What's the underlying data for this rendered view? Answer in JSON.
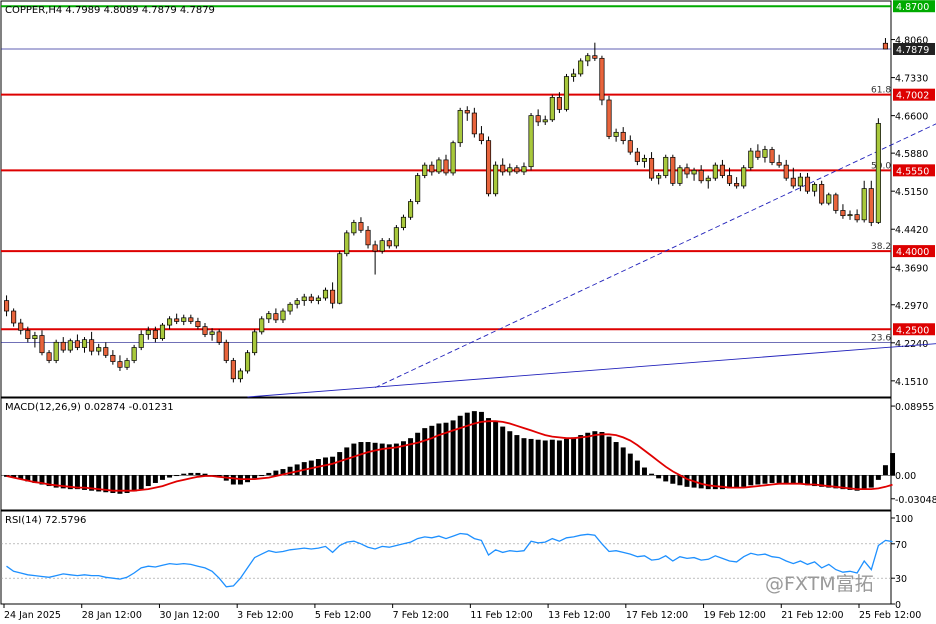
{
  "header": {
    "price_title": "COPPER,H4  4.7989 4.8089 4.7879 4.7879",
    "macd_title": "MACD(12,26,9) 0.02874 -0.01231",
    "rsi_title": "RSI(14) 72.5796"
  },
  "watermark": {
    "text": "@FXTM富拓"
  },
  "colors": {
    "bull": "#a8c83c",
    "bear": "#e8643c",
    "hline": "#dd0000",
    "trend": "#2222bb",
    "signal": "#e00000",
    "rsi": "#1e90ff",
    "grid_box": "#000000",
    "last_price": "#222222"
  },
  "chart_data": [
    {
      "type": "candlestick",
      "title": "COPPER,H4",
      "ylim": [
        4.12,
        4.88
      ],
      "y_ticks": [
        "4.8060",
        "4.7330",
        "4.6600",
        "4.5880",
        "4.5150",
        "4.4420",
        "4.3690",
        "4.2970",
        "4.2240",
        "4.1510"
      ],
      "x_ticks": [
        "24 Jan 2025",
        "28 Jan 12:00",
        "30 Jan 12:00",
        "3 Feb 12:00",
        "5 Feb 12:00",
        "7 Feb 12:00",
        "11 Feb 12:00",
        "13 Feb 12:00",
        "17 Feb 12:00",
        "19 Feb 12:00",
        "21 Feb 12:00",
        "25 Feb 12:00"
      ],
      "price_labels": [
        {
          "value": 4.87,
          "text": "4.8700",
          "kind": "level",
          "color": "#00aa00"
        },
        {
          "value": 4.7879,
          "text": "4.7879",
          "kind": "last",
          "color": "#222222"
        },
        {
          "value": 4.7002,
          "text": "4.7002",
          "kind": "level",
          "color": "#dd0000"
        },
        {
          "value": 4.555,
          "text": "4.5550",
          "kind": "level",
          "color": "#dd0000"
        },
        {
          "value": 4.4,
          "text": "4.4000",
          "kind": "level",
          "color": "#dd0000"
        },
        {
          "value": 4.25,
          "text": "4.2500",
          "kind": "level",
          "color": "#dd0000"
        }
      ],
      "fib_levels": [
        {
          "value": 4.7002,
          "label": "61.8"
        },
        {
          "value": 4.555,
          "label": "50.0"
        },
        {
          "value": 4.4,
          "label": "38.2"
        },
        {
          "value": 4.2245,
          "label": "23.6"
        }
      ],
      "trendlines": [
        {
          "style": "dashed",
          "from": [
            52,
            4.138
          ],
          "to": [
            168,
            4.88
          ]
        },
        {
          "style": "solid",
          "from": [
            34,
            4.12
          ],
          "to": [
            219,
            4.315
          ]
        }
      ],
      "candles_ohlc": [
        [
          4.305,
          4.315,
          4.275,
          4.285
        ],
        [
          4.285,
          4.29,
          4.255,
          4.262
        ],
        [
          4.262,
          4.27,
          4.24,
          4.248
        ],
        [
          4.248,
          4.255,
          4.225,
          4.232
        ],
        [
          4.232,
          4.245,
          4.215,
          4.238
        ],
        [
          4.238,
          4.248,
          4.2,
          4.205
        ],
        [
          4.205,
          4.21,
          4.185,
          4.19
        ],
        [
          4.19,
          4.23,
          4.185,
          4.225
        ],
        [
          4.225,
          4.235,
          4.205,
          4.21
        ],
        [
          4.21,
          4.232,
          4.205,
          4.228
        ],
        [
          4.228,
          4.24,
          4.21,
          4.215
        ],
        [
          4.215,
          4.235,
          4.205,
          4.23
        ],
        [
          4.23,
          4.245,
          4.2,
          4.208
        ],
        [
          4.208,
          4.222,
          4.2,
          4.215
        ],
        [
          4.215,
          4.225,
          4.195,
          4.2
        ],
        [
          4.2,
          4.21,
          4.182,
          4.188
        ],
        [
          4.188,
          4.2,
          4.17,
          4.177
        ],
        [
          4.177,
          4.195,
          4.172,
          4.19
        ],
        [
          4.19,
          4.22,
          4.185,
          4.215
        ],
        [
          4.215,
          4.248,
          4.21,
          4.24
        ],
        [
          4.24,
          4.255,
          4.23,
          4.248
        ],
        [
          4.248,
          4.255,
          4.225,
          4.232
        ],
        [
          4.232,
          4.262,
          4.228,
          4.258
        ],
        [
          4.258,
          4.275,
          4.25,
          4.27
        ],
        [
          4.27,
          4.28,
          4.26,
          4.265
        ],
        [
          4.265,
          4.278,
          4.258,
          4.272
        ],
        [
          4.272,
          4.278,
          4.26,
          4.265
        ],
        [
          4.265,
          4.272,
          4.25,
          4.255
        ],
        [
          4.255,
          4.262,
          4.235,
          4.24
        ],
        [
          4.24,
          4.252,
          4.228,
          4.245
        ],
        [
          4.245,
          4.25,
          4.22,
          4.225
        ],
        [
          4.225,
          4.23,
          4.185,
          4.19
        ],
        [
          4.19,
          4.195,
          4.148,
          4.155
        ],
        [
          4.155,
          4.175,
          4.148,
          4.17
        ],
        [
          4.17,
          4.21,
          4.165,
          4.205
        ],
        [
          4.205,
          4.25,
          4.2,
          4.245
        ],
        [
          4.245,
          4.275,
          4.24,
          4.27
        ],
        [
          4.27,
          4.285,
          4.262,
          4.28
        ],
        [
          4.28,
          4.29,
          4.262,
          4.268
        ],
        [
          4.268,
          4.29,
          4.262,
          4.285
        ],
        [
          4.285,
          4.302,
          4.278,
          4.298
        ],
        [
          4.298,
          4.31,
          4.29,
          4.305
        ],
        [
          4.305,
          4.318,
          4.295,
          4.312
        ],
        [
          4.312,
          4.318,
          4.3,
          4.305
        ],
        [
          4.305,
          4.315,
          4.298,
          4.31
        ],
        [
          4.31,
          4.33,
          4.305,
          4.325
        ],
        [
          4.325,
          4.34,
          4.29,
          4.3
        ],
        [
          4.3,
          4.4,
          4.298,
          4.395
        ],
        [
          4.395,
          4.44,
          4.39,
          4.435
        ],
        [
          4.435,
          4.46,
          4.43,
          4.455
        ],
        [
          4.455,
          4.465,
          4.435,
          4.44
        ],
        [
          4.44,
          4.448,
          4.405,
          4.412
        ],
        [
          4.412,
          4.42,
          4.355,
          4.4
        ],
        [
          4.4,
          4.425,
          4.395,
          4.42
        ],
        [
          4.42,
          4.425,
          4.405,
          4.41
        ],
        [
          4.41,
          4.45,
          4.405,
          4.445
        ],
        [
          4.445,
          4.47,
          4.44,
          4.465
        ],
        [
          4.465,
          4.5,
          4.46,
          4.495
        ],
        [
          4.495,
          4.55,
          4.49,
          4.545
        ],
        [
          4.545,
          4.57,
          4.54,
          4.565
        ],
        [
          4.565,
          4.572,
          4.545,
          4.552
        ],
        [
          4.552,
          4.58,
          4.548,
          4.575
        ],
        [
          4.575,
          4.585,
          4.545,
          4.55
        ],
        [
          4.55,
          4.612,
          4.545,
          4.608
        ],
        [
          4.608,
          4.675,
          4.6,
          4.67
        ],
        [
          4.67,
          4.678,
          4.65,
          4.665
        ],
        [
          4.665,
          4.675,
          4.618,
          4.625
        ],
        [
          4.625,
          4.64,
          4.605,
          4.612
        ],
        [
          4.612,
          4.62,
          4.505,
          4.51
        ],
        [
          4.51,
          4.572,
          4.505,
          4.565
        ],
        [
          4.565,
          4.578,
          4.545,
          4.552
        ],
        [
          4.552,
          4.568,
          4.545,
          4.56
        ],
        [
          4.56,
          4.565,
          4.548,
          4.552
        ],
        [
          4.552,
          4.57,
          4.546,
          4.562
        ],
        [
          4.562,
          4.665,
          4.555,
          4.66
        ],
        [
          4.66,
          4.672,
          4.64,
          4.648
        ],
        [
          4.648,
          4.66,
          4.642,
          4.652
        ],
        [
          4.652,
          4.7,
          4.648,
          4.695
        ],
        [
          4.695,
          4.705,
          4.665,
          4.672
        ],
        [
          4.672,
          4.74,
          4.668,
          4.735
        ],
        [
          4.735,
          4.75,
          4.725,
          4.74
        ],
        [
          4.74,
          4.77,
          4.735,
          4.765
        ],
        [
          4.765,
          4.78,
          4.755,
          4.775
        ],
        [
          4.775,
          4.8,
          4.765,
          4.77
        ],
        [
          4.77,
          4.775,
          4.68,
          4.69
        ],
        [
          4.69,
          4.698,
          4.615,
          4.62
        ],
        [
          4.62,
          4.635,
          4.61,
          4.628
        ],
        [
          4.628,
          4.638,
          4.605,
          4.612
        ],
        [
          4.612,
          4.622,
          4.585,
          4.59
        ],
        [
          4.59,
          4.598,
          4.565,
          4.572
        ],
        [
          4.572,
          4.585,
          4.56,
          4.578
        ],
        [
          4.578,
          4.59,
          4.535,
          4.54
        ],
        [
          4.54,
          4.55,
          4.528,
          4.545
        ],
        [
          4.545,
          4.585,
          4.54,
          4.58
        ],
        [
          4.58,
          4.585,
          4.525,
          4.53
        ],
        [
          4.53,
          4.565,
          4.525,
          4.56
        ],
        [
          4.56,
          4.568,
          4.54,
          4.548
        ],
        [
          4.548,
          4.56,
          4.535,
          4.555
        ],
        [
          4.555,
          4.565,
          4.53,
          4.535
        ],
        [
          4.535,
          4.545,
          4.52,
          4.54
        ],
        [
          4.54,
          4.57,
          4.535,
          4.565
        ],
        [
          4.565,
          4.575,
          4.54,
          4.545
        ],
        [
          4.545,
          4.56,
          4.525,
          4.53
        ],
        [
          4.53,
          4.542,
          4.52,
          4.525
        ],
        [
          4.525,
          4.565,
          4.52,
          4.56
        ],
        [
          4.56,
          4.598,
          4.555,
          4.592
        ],
        [
          4.592,
          4.605,
          4.575,
          4.58
        ],
        [
          4.58,
          4.602,
          4.57,
          4.595
        ],
        [
          4.595,
          4.6,
          4.565,
          4.57
        ],
        [
          4.57,
          4.585,
          4.56,
          4.565
        ],
        [
          4.565,
          4.575,
          4.535,
          4.54
        ],
        [
          4.54,
          4.56,
          4.52,
          4.525
        ],
        [
          4.525,
          4.55,
          4.515,
          4.542
        ],
        [
          4.542,
          4.55,
          4.51,
          4.515
        ],
        [
          4.515,
          4.532,
          4.505,
          4.528
        ],
        [
          4.528,
          4.535,
          4.488,
          4.492
        ],
        [
          4.492,
          4.512,
          4.488,
          4.508
        ],
        [
          4.508,
          4.512,
          4.472,
          4.478
        ],
        [
          4.478,
          4.49,
          4.462,
          4.468
        ],
        [
          4.468,
          4.478,
          4.46,
          4.47
        ],
        [
          4.47,
          4.48,
          4.455,
          4.46
        ],
        [
          4.46,
          4.535,
          4.455,
          4.52
        ],
        [
          4.52,
          4.535,
          4.448,
          4.455
        ],
        [
          4.455,
          4.655,
          4.452,
          4.645
        ],
        [
          4.7989,
          4.8089,
          4.7879,
          4.7879
        ]
      ]
    },
    {
      "type": "bar",
      "title": "MACD(12,26,9)",
      "ylim": [
        -0.045,
        0.1
      ],
      "y_ticks": [
        "0.08955",
        "0.00",
        "-0.03048"
      ],
      "y_tick_values": [
        0.08955,
        0,
        -0.03048
      ],
      "histogram": [
        -0.002,
        -0.003,
        -0.005,
        -0.008,
        -0.01,
        -0.012,
        -0.014,
        -0.016,
        -0.017,
        -0.018,
        -0.018,
        -0.019,
        -0.02,
        -0.021,
        -0.022,
        -0.023,
        -0.024,
        -0.023,
        -0.021,
        -0.018,
        -0.014,
        -0.01,
        -0.006,
        -0.003,
        0.0,
        0.002,
        0.003,
        0.003,
        0.002,
        0.0,
        -0.003,
        -0.007,
        -0.012,
        -0.012,
        -0.009,
        -0.004,
        0.0,
        0.003,
        0.006,
        0.008,
        0.011,
        0.014,
        0.017,
        0.019,
        0.021,
        0.023,
        0.024,
        0.03,
        0.036,
        0.041,
        0.043,
        0.043,
        0.042,
        0.041,
        0.04,
        0.041,
        0.044,
        0.048,
        0.055,
        0.061,
        0.064,
        0.067,
        0.068,
        0.071,
        0.077,
        0.081,
        0.083,
        0.082,
        0.074,
        0.069,
        0.063,
        0.057,
        0.052,
        0.048,
        0.047,
        0.046,
        0.045,
        0.046,
        0.045,
        0.047,
        0.049,
        0.052,
        0.055,
        0.057,
        0.056,
        0.05,
        0.043,
        0.036,
        0.028,
        0.019,
        0.01,
        0.002,
        -0.004,
        -0.008,
        -0.011,
        -0.013,
        -0.015,
        -0.016,
        -0.017,
        -0.018,
        -0.018,
        -0.018,
        -0.017,
        -0.016,
        -0.015,
        -0.013,
        -0.012,
        -0.011,
        -0.01,
        -0.01,
        -0.011,
        -0.011,
        -0.012,
        -0.013,
        -0.014,
        -0.015,
        -0.016,
        -0.017,
        -0.018,
        -0.019,
        -0.02,
        -0.019,
        -0.016,
        -0.006,
        0.013,
        0.02874
      ],
      "signal": [
        -0.001,
        -0.003,
        -0.005,
        -0.007,
        -0.009,
        -0.01,
        -0.012,
        -0.013,
        -0.014,
        -0.015,
        -0.016,
        -0.016,
        -0.017,
        -0.018,
        -0.019,
        -0.02,
        -0.02,
        -0.02,
        -0.02,
        -0.019,
        -0.018,
        -0.016,
        -0.014,
        -0.011,
        -0.008,
        -0.006,
        -0.004,
        -0.002,
        -0.001,
        -0.001,
        -0.002,
        -0.003,
        -0.004,
        -0.005,
        -0.005,
        -0.005,
        -0.004,
        -0.003,
        -0.001,
        0.001,
        0.003,
        0.005,
        0.007,
        0.009,
        0.011,
        0.013,
        0.015,
        0.018,
        0.021,
        0.024,
        0.027,
        0.03,
        0.032,
        0.034,
        0.035,
        0.036,
        0.038,
        0.04,
        0.042,
        0.045,
        0.048,
        0.052,
        0.055,
        0.058,
        0.061,
        0.064,
        0.067,
        0.069,
        0.07,
        0.07,
        0.069,
        0.067,
        0.064,
        0.061,
        0.058,
        0.055,
        0.052,
        0.05,
        0.049,
        0.048,
        0.048,
        0.049,
        0.05,
        0.052,
        0.053,
        0.053,
        0.052,
        0.049,
        0.045,
        0.039,
        0.032,
        0.025,
        0.018,
        0.011,
        0.005,
        0.0,
        -0.005,
        -0.008,
        -0.011,
        -0.013,
        -0.014,
        -0.015,
        -0.016,
        -0.016,
        -0.016,
        -0.015,
        -0.014,
        -0.013,
        -0.012,
        -0.011,
        -0.011,
        -0.011,
        -0.011,
        -0.012,
        -0.012,
        -0.013,
        -0.014,
        -0.015,
        -0.016,
        -0.017,
        -0.018,
        -0.018,
        -0.018,
        -0.017,
        -0.015,
        -0.01231
      ]
    },
    {
      "type": "line",
      "title": "RSI(14)",
      "ylim": [
        0,
        100
      ],
      "y_ticks": [
        "100",
        "70",
        "30",
        "0"
      ],
      "y_tick_values": [
        100,
        70,
        30,
        0
      ],
      "dotted_levels": [
        70,
        30
      ],
      "values": [
        44,
        38,
        36,
        34,
        33,
        32,
        31,
        33,
        35,
        34,
        33,
        34,
        33,
        33,
        31,
        30,
        29,
        31,
        36,
        42,
        44,
        43,
        45,
        47,
        46,
        47,
        46,
        44,
        42,
        38,
        30,
        20,
        21,
        30,
        42,
        54,
        58,
        62,
        60,
        61,
        63,
        64,
        65,
        64,
        65,
        67,
        60,
        68,
        72,
        73,
        70,
        66,
        64,
        67,
        66,
        68,
        70,
        72,
        76,
        78,
        77,
        79,
        76,
        79,
        82,
        81,
        76,
        74,
        57,
        63,
        60,
        62,
        61,
        62,
        73,
        71,
        72,
        76,
        73,
        77,
        78,
        80,
        81,
        80,
        70,
        61,
        62,
        60,
        58,
        55,
        56,
        51,
        52,
        56,
        50,
        55,
        53,
        54,
        51,
        52,
        56,
        53,
        50,
        49,
        55,
        59,
        57,
        58,
        55,
        54,
        50,
        47,
        50,
        46,
        49,
        42,
        46,
        40,
        37,
        38,
        36,
        50,
        40,
        68,
        74,
        72.58
      ]
    }
  ]
}
